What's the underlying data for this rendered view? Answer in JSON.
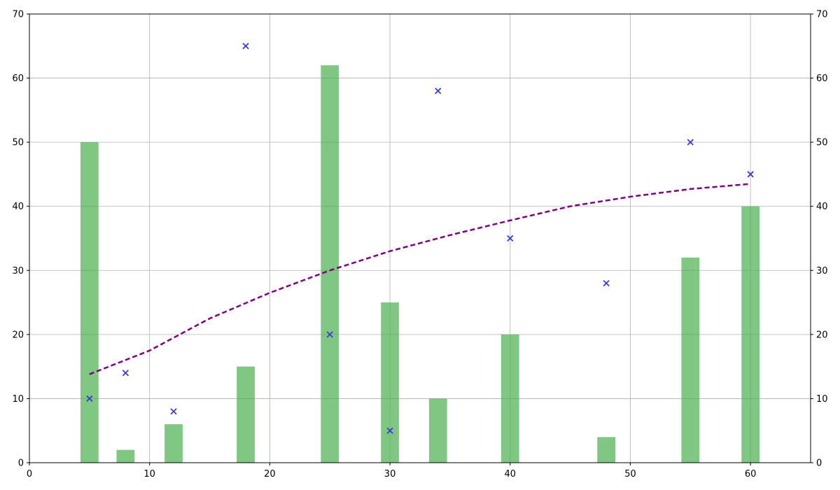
{
  "chart_data": {
    "type": "bar",
    "title": "",
    "xlabel": "",
    "ylabel": "",
    "xlim": [
      0,
      65
    ],
    "ylim": [
      0,
      70
    ],
    "y2lim": [
      0,
      70
    ],
    "grid": true,
    "x_ticks": [
      "0",
      "10",
      "20",
      "30",
      "40",
      "50",
      "60"
    ],
    "y_ticks": [
      "0",
      "10",
      "20",
      "30",
      "40",
      "50",
      "60",
      "70"
    ],
    "y2_ticks": [
      "0",
      "10",
      "20",
      "30",
      "40",
      "50",
      "60",
      "70"
    ],
    "series": [
      {
        "type": "bar",
        "color": "#4caf50",
        "x": [
          5,
          8,
          12,
          18,
          25,
          30,
          34,
          40,
          48,
          55,
          60
        ],
        "values": [
          50,
          2,
          6,
          15,
          62,
          25,
          10,
          20,
          4,
          32,
          40
        ]
      },
      {
        "type": "scatter",
        "marker": "x",
        "color": "#3b3bd6",
        "x": [
          5,
          8,
          12,
          18,
          25,
          30,
          34,
          40,
          48,
          55,
          60
        ],
        "values": [
          10,
          14,
          8,
          65,
          20,
          5,
          58,
          35,
          28,
          50,
          45
        ]
      },
      {
        "type": "line",
        "style": "dashed",
        "color": "#800080",
        "x": [
          5,
          10,
          15,
          20,
          25,
          30,
          35,
          40,
          45,
          50,
          55,
          60
        ],
        "values": [
          13.8,
          17.5,
          22.5,
          26.5,
          30.0,
          33.0,
          35.5,
          37.8,
          40.0,
          41.5,
          42.7,
          43.5
        ]
      }
    ]
  }
}
